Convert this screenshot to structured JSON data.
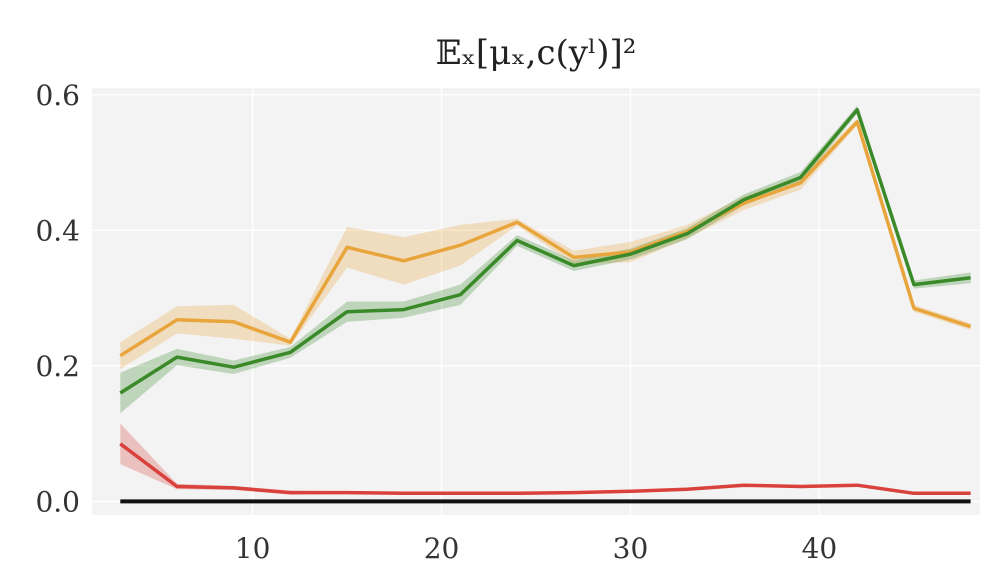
{
  "chart_data": {
    "type": "line",
    "title": "𝔼ₓ[μₓ,c(yˡ)]²",
    "xlabel": "",
    "ylabel": "",
    "xlim": [
      1.5,
      48.5
    ],
    "ylim": [
      -0.02,
      0.61
    ],
    "xticks": [
      10,
      20,
      30,
      40
    ],
    "xtick_labels": [
      "10",
      "20",
      "30",
      "40"
    ],
    "yticks": [
      0.0,
      0.2,
      0.4,
      0.6
    ],
    "ytick_labels": [
      "0.0",
      "0.2",
      "0.4",
      "0.6"
    ],
    "grid": true,
    "x": [
      3,
      6,
      9,
      12,
      15,
      18,
      21,
      24,
      27,
      30,
      33,
      36,
      39,
      42,
      45,
      48
    ],
    "series": [
      {
        "color": "#e8a53c",
        "values": [
          0.215,
          0.268,
          0.265,
          0.235,
          0.375,
          0.355,
          0.378,
          0.412,
          0.36,
          0.368,
          0.398,
          0.44,
          0.47,
          0.56,
          0.285,
          0.258
        ],
        "band": [
          0.02,
          0.02,
          0.025,
          0.005,
          0.03,
          0.035,
          0.03,
          0.005,
          0.01,
          0.015,
          0.01,
          0.01,
          0.01,
          0.005,
          0.005,
          0.005
        ]
      },
      {
        "color": "#3a8a2a",
        "values": [
          0.16,
          0.213,
          0.198,
          0.22,
          0.28,
          0.283,
          0.305,
          0.385,
          0.348,
          0.365,
          0.395,
          0.445,
          0.478,
          0.578,
          0.32,
          0.33
        ],
        "band": [
          0.03,
          0.012,
          0.01,
          0.008,
          0.015,
          0.012,
          0.015,
          0.008,
          0.008,
          0.008,
          0.008,
          0.008,
          0.008,
          0.006,
          0.006,
          0.008
        ]
      },
      {
        "color": "#d9413c",
        "values": [
          0.085,
          0.022,
          0.02,
          0.013,
          0.013,
          0.012,
          0.012,
          0.012,
          0.013,
          0.015,
          0.018,
          0.024,
          0.022,
          0.024,
          0.012,
          0.012
        ],
        "band": [
          0.03,
          0.004,
          0.003,
          0.003,
          0.002,
          0.002,
          0.002,
          0.002,
          0.002,
          0.002,
          0.002,
          0.002,
          0.002,
          0.002,
          0.002,
          0.002
        ]
      },
      {
        "color": "#111111",
        "values": [
          0,
          0,
          0,
          0,
          0,
          0,
          0,
          0,
          0,
          0,
          0,
          0,
          0,
          0,
          0,
          0
        ],
        "band": [
          0,
          0,
          0,
          0,
          0,
          0,
          0,
          0,
          0,
          0,
          0,
          0,
          0,
          0,
          0,
          0
        ]
      }
    ]
  }
}
